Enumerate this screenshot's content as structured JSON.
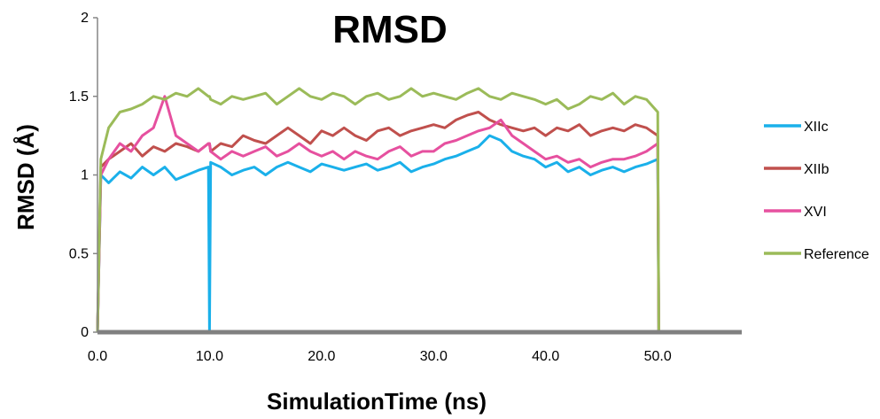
{
  "chart_data": {
    "type": "line",
    "title": "RMSD",
    "xlabel": "SimulationTime (ns)",
    "ylabel": "RMSD (Å)",
    "xlim": [
      0,
      57.5
    ],
    "ylim": [
      0,
      2
    ],
    "x_ticks": [
      "0.0",
      "10.0",
      "20.0",
      "30.0",
      "40.0",
      "50.0"
    ],
    "y_ticks": [
      "0",
      "0.5",
      "1",
      "1.5",
      "2"
    ],
    "grid": false,
    "legend_position": "right",
    "x": [
      0,
      0.3,
      1,
      2,
      3,
      4,
      5,
      6,
      7,
      8,
      9,
      9.9,
      10,
      10.1,
      11,
      12,
      13,
      14,
      15,
      16,
      17,
      18,
      19,
      20,
      21,
      22,
      23,
      24,
      25,
      26,
      27,
      28,
      29,
      30,
      31,
      32,
      33,
      34,
      35,
      36,
      37,
      38,
      39,
      40,
      41,
      42,
      43,
      44,
      45,
      46,
      47,
      48,
      49,
      50,
      50.1,
      52,
      55,
      57.5
    ],
    "series": [
      {
        "name": "XIIc",
        "color": "#1ab0ea",
        "values": [
          0,
          1.0,
          0.95,
          1.02,
          0.98,
          1.05,
          1.0,
          1.05,
          0.97,
          1.0,
          1.03,
          1.05,
          0,
          1.08,
          1.05,
          1.0,
          1.03,
          1.05,
          1.0,
          1.05,
          1.08,
          1.05,
          1.02,
          1.07,
          1.05,
          1.03,
          1.05,
          1.07,
          1.03,
          1.05,
          1.08,
          1.02,
          1.05,
          1.07,
          1.1,
          1.12,
          1.15,
          1.18,
          1.25,
          1.22,
          1.15,
          1.12,
          1.1,
          1.05,
          1.08,
          1.02,
          1.05,
          1.0,
          1.03,
          1.05,
          1.02,
          1.05,
          1.07,
          1.1,
          0,
          0,
          0,
          0
        ]
      },
      {
        "name": "XIIb",
        "color": "#c0504d",
        "values": [
          0,
          1.05,
          1.1,
          1.15,
          1.2,
          1.12,
          1.18,
          1.15,
          1.2,
          1.18,
          1.15,
          1.2,
          1.2,
          1.15,
          1.2,
          1.18,
          1.25,
          1.22,
          1.2,
          1.25,
          1.3,
          1.25,
          1.2,
          1.28,
          1.25,
          1.3,
          1.25,
          1.22,
          1.28,
          1.3,
          1.25,
          1.28,
          1.3,
          1.32,
          1.3,
          1.35,
          1.38,
          1.4,
          1.35,
          1.32,
          1.3,
          1.28,
          1.3,
          1.25,
          1.3,
          1.28,
          1.32,
          1.25,
          1.28,
          1.3,
          1.28,
          1.32,
          1.3,
          1.25,
          0,
          0,
          0,
          0
        ]
      },
      {
        "name": "XVI",
        "color": "#e6509f",
        "values": [
          0,
          1.0,
          1.1,
          1.2,
          1.15,
          1.25,
          1.3,
          1.5,
          1.25,
          1.2,
          1.15,
          1.2,
          1.2,
          1.15,
          1.1,
          1.15,
          1.12,
          1.15,
          1.18,
          1.12,
          1.15,
          1.2,
          1.15,
          1.12,
          1.15,
          1.1,
          1.15,
          1.12,
          1.1,
          1.15,
          1.18,
          1.12,
          1.15,
          1.15,
          1.2,
          1.22,
          1.25,
          1.28,
          1.3,
          1.35,
          1.25,
          1.2,
          1.15,
          1.1,
          1.12,
          1.08,
          1.1,
          1.05,
          1.08,
          1.1,
          1.1,
          1.12,
          1.15,
          1.2,
          0,
          0,
          0,
          0
        ]
      },
      {
        "name": "Reference",
        "color": "#9bbb59",
        "values": [
          0,
          1.1,
          1.3,
          1.4,
          1.42,
          1.45,
          1.5,
          1.48,
          1.52,
          1.5,
          1.55,
          1.5,
          1.5,
          1.48,
          1.45,
          1.5,
          1.48,
          1.5,
          1.52,
          1.45,
          1.5,
          1.55,
          1.5,
          1.48,
          1.52,
          1.5,
          1.45,
          1.5,
          1.52,
          1.48,
          1.5,
          1.55,
          1.5,
          1.52,
          1.5,
          1.48,
          1.52,
          1.55,
          1.5,
          1.48,
          1.52,
          1.5,
          1.48,
          1.45,
          1.48,
          1.42,
          1.45,
          1.5,
          1.48,
          1.52,
          1.45,
          1.5,
          1.48,
          1.4,
          0,
          0,
          0,
          0
        ]
      }
    ]
  }
}
